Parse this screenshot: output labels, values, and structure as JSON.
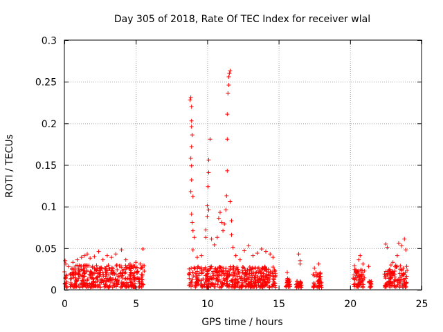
{
  "chart_data": {
    "type": "scatter",
    "title": "Day 305 of 2018, Rate Of TEC Index for receiver wlal",
    "xlabel": "GPS time / hours",
    "ylabel": "ROTI / TECUs",
    "xlim": [
      0,
      25
    ],
    "ylim": [
      0,
      0.3
    ],
    "x_ticks": [
      0,
      5,
      10,
      15,
      20,
      25
    ],
    "x_tick_labels": [
      "0",
      "5",
      "10",
      "15",
      "20",
      "25"
    ],
    "y_ticks": [
      0,
      0.05,
      0.1,
      0.15,
      0.2,
      0.25,
      0.3
    ],
    "y_tick_labels": [
      "0",
      "0.05",
      "0.1",
      "0.15",
      "0.2",
      "0.25",
      "0.3"
    ],
    "grid": true,
    "marker": "+",
    "series": [
      {
        "name": "ROTI",
        "color": "#ff0000",
        "peaks": [
          {
            "x": 0.05,
            "y": 0.035
          },
          {
            "x": 0.1,
            "y": 0.031
          },
          {
            "x": 0.3,
            "y": 0.028
          },
          {
            "x": 0.6,
            "y": 0.033
          },
          {
            "x": 0.9,
            "y": 0.036
          },
          {
            "x": 1.2,
            "y": 0.039
          },
          {
            "x": 1.4,
            "y": 0.041
          },
          {
            "x": 1.6,
            "y": 0.043
          },
          {
            "x": 1.8,
            "y": 0.038
          },
          {
            "x": 2.1,
            "y": 0.04
          },
          {
            "x": 2.4,
            "y": 0.046
          },
          {
            "x": 2.7,
            "y": 0.036
          },
          {
            "x": 3.0,
            "y": 0.041
          },
          {
            "x": 3.3,
            "y": 0.039
          },
          {
            "x": 3.6,
            "y": 0.043
          },
          {
            "x": 4.0,
            "y": 0.048
          },
          {
            "x": 4.3,
            "y": 0.036
          },
          {
            "x": 4.6,
            "y": 0.031
          },
          {
            "x": 5.0,
            "y": 0.033
          },
          {
            "x": 5.3,
            "y": 0.031
          },
          {
            "x": 5.5,
            "y": 0.049
          },
          {
            "x": 8.8,
            "y": 0.228
          },
          {
            "x": 8.85,
            "y": 0.231
          },
          {
            "x": 8.9,
            "y": 0.22
          },
          {
            "x": 8.9,
            "y": 0.203
          },
          {
            "x": 8.9,
            "y": 0.196
          },
          {
            "x": 8.95,
            "y": 0.186
          },
          {
            "x": 8.9,
            "y": 0.172
          },
          {
            "x": 8.85,
            "y": 0.158
          },
          {
            "x": 8.9,
            "y": 0.149
          },
          {
            "x": 8.9,
            "y": 0.132
          },
          {
            "x": 8.85,
            "y": 0.118
          },
          {
            "x": 9.0,
            "y": 0.112
          },
          {
            "x": 8.9,
            "y": 0.091
          },
          {
            "x": 8.95,
            "y": 0.081
          },
          {
            "x": 9.0,
            "y": 0.071
          },
          {
            "x": 9.1,
            "y": 0.063
          },
          {
            "x": 9.0,
            "y": 0.048
          },
          {
            "x": 9.3,
            "y": 0.039
          },
          {
            "x": 9.6,
            "y": 0.041
          },
          {
            "x": 9.9,
            "y": 0.063
          },
          {
            "x": 9.9,
            "y": 0.072
          },
          {
            "x": 10.0,
            "y": 0.101
          },
          {
            "x": 10.05,
            "y": 0.124
          },
          {
            "x": 10.1,
            "y": 0.141
          },
          {
            "x": 10.1,
            "y": 0.156
          },
          {
            "x": 10.2,
            "y": 0.181
          },
          {
            "x": 10.1,
            "y": 0.096
          },
          {
            "x": 10.0,
            "y": 0.088
          },
          {
            "x": 10.3,
            "y": 0.061
          },
          {
            "x": 10.5,
            "y": 0.054
          },
          {
            "x": 10.7,
            "y": 0.063
          },
          {
            "x": 10.8,
            "y": 0.086
          },
          {
            "x": 10.9,
            "y": 0.093
          },
          {
            "x": 11.0,
            "y": 0.081
          },
          {
            "x": 11.1,
            "y": 0.071
          },
          {
            "x": 11.2,
            "y": 0.079
          },
          {
            "x": 11.3,
            "y": 0.096
          },
          {
            "x": 11.35,
            "y": 0.113
          },
          {
            "x": 11.4,
            "y": 0.143
          },
          {
            "x": 11.4,
            "y": 0.181
          },
          {
            "x": 11.4,
            "y": 0.211
          },
          {
            "x": 11.45,
            "y": 0.236
          },
          {
            "x": 11.5,
            "y": 0.246
          },
          {
            "x": 11.5,
            "y": 0.256
          },
          {
            "x": 11.55,
            "y": 0.26
          },
          {
            "x": 11.6,
            "y": 0.263
          },
          {
            "x": 11.6,
            "y": 0.106
          },
          {
            "x": 11.7,
            "y": 0.083
          },
          {
            "x": 11.7,
            "y": 0.066
          },
          {
            "x": 11.8,
            "y": 0.051
          },
          {
            "x": 12.0,
            "y": 0.041
          },
          {
            "x": 12.3,
            "y": 0.036
          },
          {
            "x": 12.6,
            "y": 0.047
          },
          {
            "x": 12.9,
            "y": 0.053
          },
          {
            "x": 13.2,
            "y": 0.041
          },
          {
            "x": 13.5,
            "y": 0.044
          },
          {
            "x": 13.8,
            "y": 0.049
          },
          {
            "x": 14.1,
            "y": 0.046
          },
          {
            "x": 14.4,
            "y": 0.043
          },
          {
            "x": 14.6,
            "y": 0.039
          },
          {
            "x": 15.6,
            "y": 0.021
          },
          {
            "x": 16.4,
            "y": 0.043
          },
          {
            "x": 16.5,
            "y": 0.035
          },
          {
            "x": 16.5,
            "y": 0.031
          },
          {
            "x": 17.5,
            "y": 0.026
          },
          {
            "x": 17.8,
            "y": 0.031
          },
          {
            "x": 20.3,
            "y": 0.029
          },
          {
            "x": 20.6,
            "y": 0.036
          },
          {
            "x": 20.7,
            "y": 0.041
          },
          {
            "x": 20.9,
            "y": 0.031
          },
          {
            "x": 21.3,
            "y": 0.028
          },
          {
            "x": 22.5,
            "y": 0.055
          },
          {
            "x": 22.6,
            "y": 0.051
          },
          {
            "x": 23.0,
            "y": 0.033
          },
          {
            "x": 23.3,
            "y": 0.041
          },
          {
            "x": 23.4,
            "y": 0.056
          },
          {
            "x": 23.6,
            "y": 0.053
          },
          {
            "x": 23.8,
            "y": 0.061
          },
          {
            "x": 23.9,
            "y": 0.048
          }
        ],
        "dense_bands": [
          {
            "x_start": 0.0,
            "x_end": 0.2,
            "y_max": 0.022
          },
          {
            "x_start": 0.4,
            "x_end": 5.6,
            "y_max": 0.03
          },
          {
            "x_start": 8.7,
            "x_end": 14.8,
            "y_max": 0.028
          },
          {
            "x_start": 15.5,
            "x_end": 15.8,
            "y_max": 0.014
          },
          {
            "x_start": 16.2,
            "x_end": 16.6,
            "y_max": 0.011
          },
          {
            "x_start": 17.4,
            "x_end": 18.0,
            "y_max": 0.022
          },
          {
            "x_start": 20.2,
            "x_end": 21.0,
            "y_max": 0.025
          },
          {
            "x_start": 21.3,
            "x_end": 21.5,
            "y_max": 0.012
          },
          {
            "x_start": 22.4,
            "x_end": 24.0,
            "y_max": 0.03
          }
        ]
      }
    ]
  }
}
